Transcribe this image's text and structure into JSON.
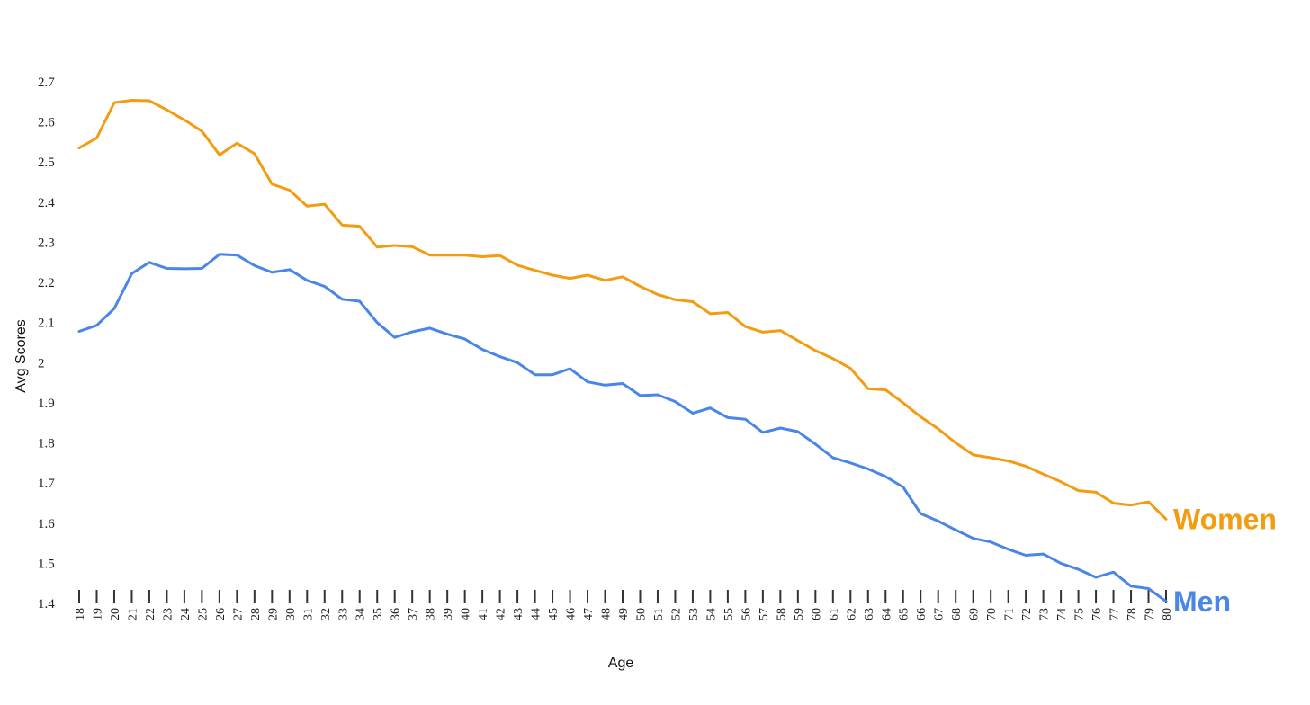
{
  "chart_data": {
    "type": "line",
    "title": "",
    "xlabel": "Age",
    "ylabel": "Avg Scores",
    "ylim": [
      1.4,
      2.7
    ],
    "yticks": [
      "1.4",
      "1.5",
      "1.6",
      "1.7",
      "1.8",
      "1.9",
      "2",
      "2.1",
      "2.2",
      "2.3",
      "2.4",
      "2.5",
      "2.6",
      "2.7"
    ],
    "x": [
      18,
      19,
      20,
      21,
      22,
      23,
      24,
      25,
      26,
      27,
      28,
      29,
      30,
      31,
      32,
      33,
      34,
      35,
      36,
      37,
      38,
      39,
      40,
      41,
      42,
      43,
      44,
      45,
      46,
      47,
      48,
      49,
      50,
      51,
      52,
      53,
      54,
      55,
      56,
      57,
      58,
      59,
      60,
      61,
      62,
      63,
      64,
      65,
      66,
      67,
      68,
      69,
      70,
      71,
      72,
      73,
      74,
      75,
      76,
      77,
      78,
      79,
      80
    ],
    "grid": false,
    "legend": "direct labels at right end of lines",
    "series": [
      {
        "name": "Women",
        "color": "#F39C12",
        "values": [
          2.535,
          2.56,
          2.648,
          2.654,
          2.653,
          2.63,
          2.605,
          2.577,
          2.518,
          2.547,
          2.521,
          2.445,
          2.43,
          2.39,
          2.395,
          2.343,
          2.34,
          2.288,
          2.292,
          2.289,
          2.268,
          2.268,
          2.268,
          2.264,
          2.267,
          2.243,
          2.23,
          2.218,
          2.21,
          2.218,
          2.205,
          2.214,
          2.19,
          2.17,
          2.157,
          2.152,
          2.122,
          2.125,
          2.09,
          2.076,
          2.08,
          2.055,
          2.03,
          2.01,
          1.986,
          1.935,
          1.932,
          1.9,
          1.865,
          1.835,
          1.8,
          1.77,
          1.763,
          1.755,
          1.742,
          1.722,
          1.703,
          1.681,
          1.677,
          1.65,
          1.645,
          1.653,
          1.61
        ]
      },
      {
        "name": "Men",
        "color": "#4A86E8",
        "values": [
          2.078,
          2.093,
          2.135,
          2.222,
          2.25,
          2.235,
          2.234,
          2.235,
          2.27,
          2.268,
          2.242,
          2.225,
          2.232,
          2.205,
          2.19,
          2.158,
          2.153,
          2.1,
          2.063,
          2.077,
          2.086,
          2.071,
          2.059,
          2.033,
          2.015,
          2.0,
          1.97,
          1.97,
          1.985,
          1.952,
          1.944,
          1.948,
          1.918,
          1.92,
          1.903,
          1.874,
          1.887,
          1.863,
          1.859,
          1.826,
          1.837,
          1.828,
          1.797,
          1.763,
          1.75,
          1.735,
          1.716,
          1.69,
          1.624,
          1.605,
          1.583,
          1.562,
          1.553,
          1.535,
          1.52,
          1.523,
          1.5,
          1.485,
          1.465,
          1.478,
          1.443,
          1.437,
          1.405
        ]
      }
    ]
  }
}
